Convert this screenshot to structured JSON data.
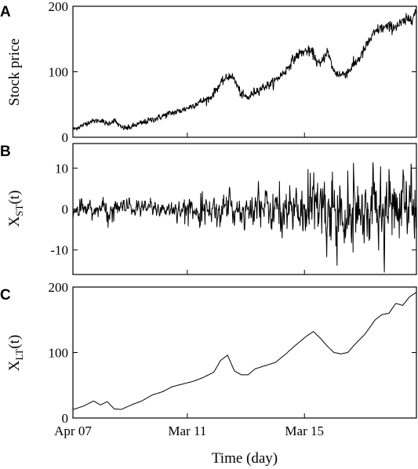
{
  "chart_data": [
    {
      "panel": "A",
      "type": "line",
      "ylabel": "Stock price",
      "ylim": [
        0,
        200
      ],
      "yticks": [
        0,
        100,
        200
      ],
      "xlim": [
        0,
        1
      ],
      "series": [
        {
          "x": [
            0.0,
            0.02,
            0.05,
            0.08,
            0.1,
            0.12,
            0.14,
            0.16,
            0.19,
            0.22,
            0.25,
            0.28,
            0.31,
            0.34,
            0.37,
            0.4,
            0.42,
            0.44,
            0.46,
            0.47,
            0.49,
            0.51,
            0.53,
            0.56,
            0.58,
            0.6,
            0.62,
            0.64,
            0.66,
            0.68,
            0.7,
            0.71,
            0.72,
            0.74,
            0.76,
            0.78,
            0.8,
            0.82,
            0.84,
            0.86,
            0.88,
            0.89,
            0.91,
            0.93,
            0.95,
            0.97,
            0.99,
            1.0
          ],
          "y": [
            12,
            16,
            24,
            26,
            20,
            26,
            15,
            14,
            20,
            25,
            30,
            36,
            40,
            46,
            54,
            60,
            75,
            88,
            95,
            88,
            65,
            60,
            70,
            78,
            82,
            92,
            102,
            118,
            128,
            132,
            128,
            115,
            110,
            132,
            100,
            95,
            100,
            112,
            125,
            145,
            160,
            165,
            168,
            168,
            172,
            178,
            185,
            192
          ],
          "noise": 3
        }
      ]
    },
    {
      "panel": "B",
      "type": "line",
      "ylabel": "X",
      "ylabel_sub": "ST",
      "ylabel_suffix": "(t)",
      "ylim": [
        -16,
        16
      ],
      "yticks": [
        -10,
        0,
        10
      ],
      "ytick_labels": [
        "-10",
        "0",
        "10"
      ],
      "xlim": [
        0,
        1
      ],
      "series": [
        {
          "x": [
            0.0,
            0.1,
            0.2,
            0.3,
            0.4,
            0.5,
            0.6,
            0.65,
            0.7,
            0.75,
            0.8,
            0.85,
            0.9,
            0.95,
            1.0
          ],
          "envelope": [
            2.5,
            3.5,
            3,
            3.5,
            4.5,
            6,
            8,
            10,
            12,
            14,
            11,
            13,
            12,
            14,
            13
          ],
          "samples": 900
        }
      ]
    },
    {
      "panel": "C",
      "type": "line",
      "ylabel": "X",
      "ylabel_sub": "LT",
      "ylabel_suffix": "(t)",
      "ylim": [
        0,
        200
      ],
      "yticks": [
        0,
        100,
        200
      ],
      "xlim": [
        0,
        1
      ],
      "xticks": [
        0,
        0.333,
        0.674
      ],
      "xtick_labels": [
        "Apr 07",
        "Mar 11",
        "Mar 15"
      ],
      "xlabel": "Time (day)",
      "series": [
        {
          "x": [
            0.0,
            0.03,
            0.06,
            0.08,
            0.1,
            0.12,
            0.14,
            0.17,
            0.2,
            0.23,
            0.26,
            0.29,
            0.32,
            0.35,
            0.38,
            0.41,
            0.43,
            0.45,
            0.47,
            0.49,
            0.51,
            0.53,
            0.56,
            0.59,
            0.62,
            0.65,
            0.68,
            0.7,
            0.72,
            0.74,
            0.76,
            0.78,
            0.8,
            0.82,
            0.85,
            0.88,
            0.9,
            0.92,
            0.94,
            0.96,
            0.98,
            1.0
          ],
          "y": [
            13,
            18,
            26,
            20,
            25,
            14,
            13,
            20,
            26,
            35,
            40,
            48,
            52,
            56,
            62,
            70,
            88,
            96,
            72,
            66,
            66,
            75,
            80,
            85,
            98,
            112,
            125,
            132,
            122,
            110,
            100,
            98,
            100,
            112,
            128,
            150,
            158,
            160,
            175,
            172,
            185,
            192
          ]
        }
      ]
    }
  ]
}
